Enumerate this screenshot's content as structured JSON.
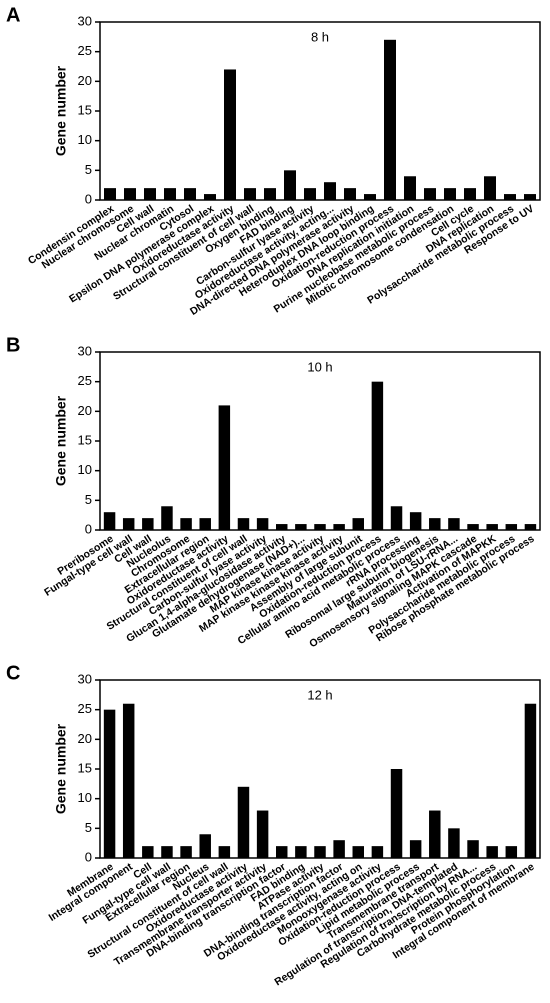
{
  "chart_data": [
    {
      "type": "bar",
      "panel": "A",
      "title": "8 h",
      "ylabel": "Gene number",
      "color": "#000000",
      "categories": [
        "Condensin complex",
        "Nuclear chromosome",
        "Cell wall",
        "Nuclear chromatin",
        "Cytosol",
        "Epsilon DNA polymerase complex",
        "Oxidoreductase activity",
        "Structural constituent of cell wall",
        "Oxygen binding",
        "FAD binding",
        "Carbon-sulfur lyase activity",
        "Oxidoreductase activity, acting...",
        "DNA-directed DNA polymerase activity",
        "Heteroduplex DNA loop binding",
        "Oxidation-reduction process",
        "DNA replication initiation",
        "Purine nucleobase metabolic process",
        "Mitotic chromosome condensation",
        "Cell cycle",
        "DNA replication",
        "Polysaccharide metabolic process",
        "Response to UV"
      ],
      "values": [
        2,
        2,
        2,
        2,
        2,
        1,
        22,
        2,
        2,
        5,
        2,
        3,
        2,
        1,
        27,
        4,
        2,
        2,
        2,
        4,
        1,
        1
      ],
      "ylim": [
        0,
        30
      ],
      "yticks": [
        0,
        5,
        10,
        15,
        20,
        25,
        30
      ]
    },
    {
      "type": "bar",
      "panel": "B",
      "title": "10 h",
      "ylabel": "Gene number",
      "color": "#000000",
      "categories": [
        "Preribosome",
        "Fungal-type cell wall",
        "Cell wall",
        "Nucleolus",
        "Chromosome",
        "Extracellular region",
        "Oxidoreductase activity",
        "Structural constituent of cell wall",
        "Carbon-sulfur lyase activity",
        "Glucan 1,4-alpha-glucosidase activity",
        "Glutamate dehydrogenase (NAD+)...",
        "MAP kinase kinase activity",
        "MAP kinase kinase kinase activity",
        "Assembly of large subunit",
        "Oxidation-reduction process",
        "Cellular amino acid metabolic process",
        "rRNA processing",
        "Ribosomal large subunit biogenesis",
        "Maturation of LSU-rRNA...",
        "Osmosensory signaling MAPK cascade",
        "Activation of MAPKK",
        "Polysaccharide metabolic process",
        "Ribose phosphate metabolic process"
      ],
      "values": [
        3,
        2,
        2,
        4,
        2,
        2,
        21,
        2,
        2,
        1,
        1,
        1,
        1,
        2,
        25,
        4,
        3,
        2,
        2,
        1,
        1,
        1,
        1
      ],
      "ylim": [
        0,
        30
      ],
      "yticks": [
        0,
        5,
        10,
        15,
        20,
        25,
        30
      ]
    },
    {
      "type": "bar",
      "panel": "C",
      "title": "12 h",
      "ylabel": "Gene number",
      "color": "#000000",
      "categories": [
        "Membrane",
        "Integral component",
        "Cell",
        "Fungal-type cell wall",
        "Extracellular region",
        "Nucleus",
        "Structural constituent of cell wall",
        "Oxidoreductase activity",
        "Transmembrane transporter activity",
        "DNA-binding transcription factor",
        "FAD binding",
        "ATPase activity",
        "DNA-binding transcription factor",
        "Oxidoreductase activity, acting on",
        "Monooxygenase activity",
        "Oxidation-reduction process",
        "Lipid metabolic process",
        "Transmembrane transport",
        "Regulation of transcription, DNA-templated",
        "Regulation of transcription by RNA...",
        "Carbohydrate metabolic process",
        "Protein phosphorylation",
        "Integral component of membrane"
      ],
      "values": [
        25,
        26,
        2,
        2,
        2,
        4,
        2,
        12,
        8,
        2,
        2,
        2,
        3,
        2,
        2,
        15,
        3,
        8,
        5,
        3,
        2,
        2,
        26
      ],
      "ylim": [
        0,
        30
      ],
      "yticks": [
        0,
        5,
        10,
        15,
        20,
        25,
        30
      ]
    }
  ]
}
